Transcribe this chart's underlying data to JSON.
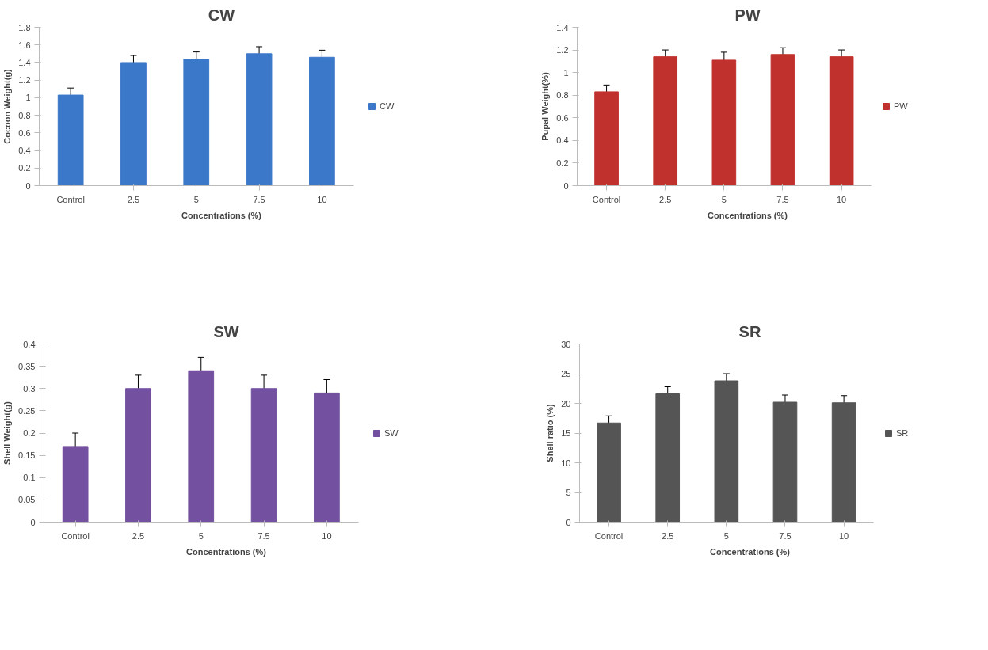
{
  "chart_data": [
    {
      "type": "bar",
      "title": "CW",
      "xlabel": "Concentrations (%)",
      "ylabel": "Cocoon Weight(g)",
      "categories": [
        "Control",
        "2.5",
        "5",
        "7.5",
        "10"
      ],
      "series": [
        {
          "name": "CW",
          "color": "#3b78c9",
          "values": [
            1.03,
            1.4,
            1.44,
            1.5,
            1.46
          ],
          "errors": [
            0.08,
            0.08,
            0.08,
            0.08,
            0.08
          ]
        }
      ],
      "ylim": [
        0,
        1.8
      ],
      "yticks": [
        0,
        0.2,
        0.4,
        0.6,
        0.8,
        1,
        1.2,
        1.4,
        1.6,
        1.8
      ],
      "grid": false,
      "legend": "right"
    },
    {
      "type": "bar",
      "title": "PW",
      "xlabel": "Concentrations (%)",
      "ylabel": "Pupal Weight(%)",
      "categories": [
        "Control",
        "2.5",
        "5",
        "7.5",
        "10"
      ],
      "series": [
        {
          "name": "PW",
          "color": "#c0312e",
          "values": [
            0.83,
            1.14,
            1.11,
            1.16,
            1.14
          ],
          "errors": [
            0.06,
            0.06,
            0.07,
            0.06,
            0.06
          ]
        }
      ],
      "ylim": [
        0,
        1.4
      ],
      "yticks": [
        0,
        0.2,
        0.4,
        0.6,
        0.8,
        1,
        1.2,
        1.4
      ],
      "grid": false,
      "legend": "right"
    },
    {
      "type": "bar",
      "title": "SW",
      "xlabel": "Concentrations (%)",
      "ylabel": "Shell Weight(g)",
      "categories": [
        "Control",
        "2.5",
        "5",
        "7.5",
        "10"
      ],
      "series": [
        {
          "name": "SW",
          "color": "#7451a0",
          "values": [
            0.17,
            0.3,
            0.34,
            0.3,
            0.29
          ],
          "errors": [
            0.03,
            0.03,
            0.03,
            0.03,
            0.03
          ]
        }
      ],
      "ylim": [
        0,
        0.4
      ],
      "yticks": [
        0,
        0.05,
        0.1,
        0.15,
        0.2,
        0.25,
        0.3,
        0.35,
        0.4
      ],
      "grid": false,
      "legend": "right"
    },
    {
      "type": "bar",
      "title": "SR",
      "xlabel": "Concentrations (%)",
      "ylabel": "Shell ratio (%)",
      "categories": [
        "Control",
        "2.5",
        "5",
        "7.5",
        "10"
      ],
      "series": [
        {
          "name": "SR",
          "color": "#555555",
          "values": [
            16.7,
            21.6,
            23.8,
            20.2,
            20.1
          ],
          "errors": [
            1.2,
            1.2,
            1.2,
            1.2,
            1.2
          ]
        }
      ],
      "ylim": [
        0,
        30
      ],
      "yticks": [
        0,
        5,
        10,
        15,
        20,
        25,
        30
      ],
      "grid": false,
      "legend": "right"
    }
  ]
}
